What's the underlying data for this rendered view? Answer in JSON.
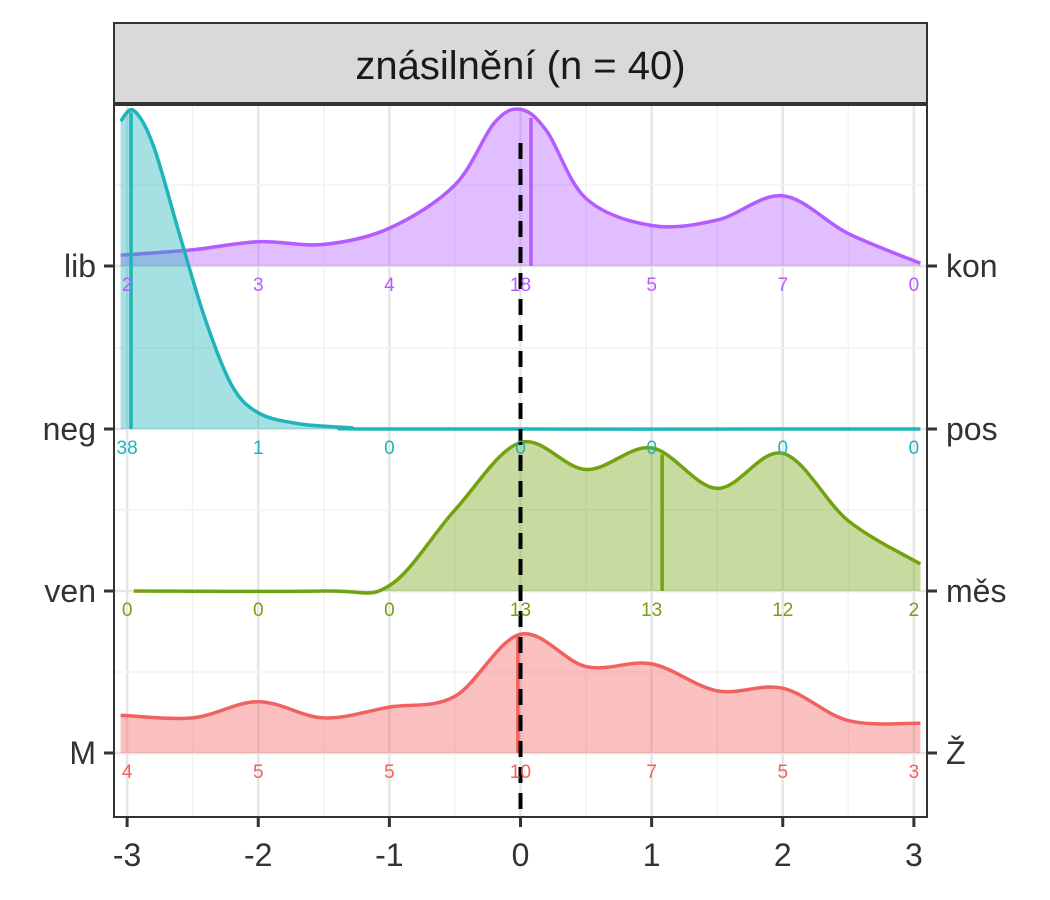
{
  "chart_data": {
    "type": "ridgeline",
    "title": "znásilnění (n = 40)",
    "xlabel": "",
    "ylabel": "",
    "xlim": [
      -3.1,
      3.1
    ],
    "x_ticks": [
      -3,
      -2,
      -1,
      0,
      1,
      2,
      3
    ],
    "x_tick_labels": [
      "-3",
      "-2",
      "-1",
      "0",
      "1",
      "2",
      "3"
    ],
    "reference_line_x": 0,
    "grid": true,
    "series": [
      {
        "left_label": "lib",
        "right_label": "kon",
        "color": "#b45cff",
        "counts": [
          2,
          3,
          4,
          18,
          5,
          7,
          0
        ],
        "mean": 0.08,
        "density": [
          [
            -3.05,
            0.04
          ],
          [
            -2.5,
            0.06
          ],
          [
            -2,
            0.09
          ],
          [
            -1.5,
            0.08
          ],
          [
            -1,
            0.14
          ],
          [
            -0.5,
            0.3
          ],
          [
            -0.2,
            0.53
          ],
          [
            0,
            0.58
          ],
          [
            0.2,
            0.5
          ],
          [
            0.5,
            0.25
          ],
          [
            1,
            0.15
          ],
          [
            1.5,
            0.17
          ],
          [
            2,
            0.26
          ],
          [
            2.5,
            0.12
          ],
          [
            3.05,
            0.01
          ]
        ]
      },
      {
        "left_label": "neg",
        "right_label": "pos",
        "color": "#1fb5b8",
        "counts": [
          38,
          1,
          0,
          0,
          0,
          0,
          0
        ],
        "mean": -2.97,
        "density": [
          [
            -3.05,
            1.14
          ],
          [
            -2.95,
            1.18
          ],
          [
            -2.8,
            1.05
          ],
          [
            -2.6,
            0.72
          ],
          [
            -2.4,
            0.4
          ],
          [
            -2.2,
            0.16
          ],
          [
            -2,
            0.06
          ],
          [
            -1.7,
            0.02
          ],
          [
            -1.3,
            0.005
          ],
          [
            -1,
            0
          ],
          [
            3.05,
            0
          ]
        ]
      },
      {
        "left_label": "ven",
        "right_label": "měs",
        "color": "#72a30f",
        "counts": [
          0,
          0,
          0,
          13,
          13,
          12,
          2
        ],
        "mean": 1.08,
        "density": [
          [
            -2.95,
            0
          ],
          [
            -1.5,
            0
          ],
          [
            -1,
            0.02
          ],
          [
            -0.5,
            0.3
          ],
          [
            0,
            0.55
          ],
          [
            0.5,
            0.45
          ],
          [
            1,
            0.53
          ],
          [
            1.5,
            0.38
          ],
          [
            2,
            0.51
          ],
          [
            2.5,
            0.26
          ],
          [
            3.05,
            0.1
          ]
        ]
      },
      {
        "left_label": "M",
        "right_label": "Ž",
        "color": "#f0625f",
        "counts": [
          4,
          5,
          5,
          10,
          7,
          5,
          3
        ],
        "mean": -0.02,
        "density": [
          [
            -3.05,
            0.14
          ],
          [
            -2.5,
            0.13
          ],
          [
            -2,
            0.19
          ],
          [
            -1.5,
            0.13
          ],
          [
            -1,
            0.17
          ],
          [
            -0.5,
            0.21
          ],
          [
            0,
            0.44
          ],
          [
            0.5,
            0.32
          ],
          [
            1,
            0.33
          ],
          [
            1.5,
            0.23
          ],
          [
            2,
            0.24
          ],
          [
            2.5,
            0.12
          ],
          [
            3.05,
            0.11
          ]
        ]
      }
    ]
  }
}
